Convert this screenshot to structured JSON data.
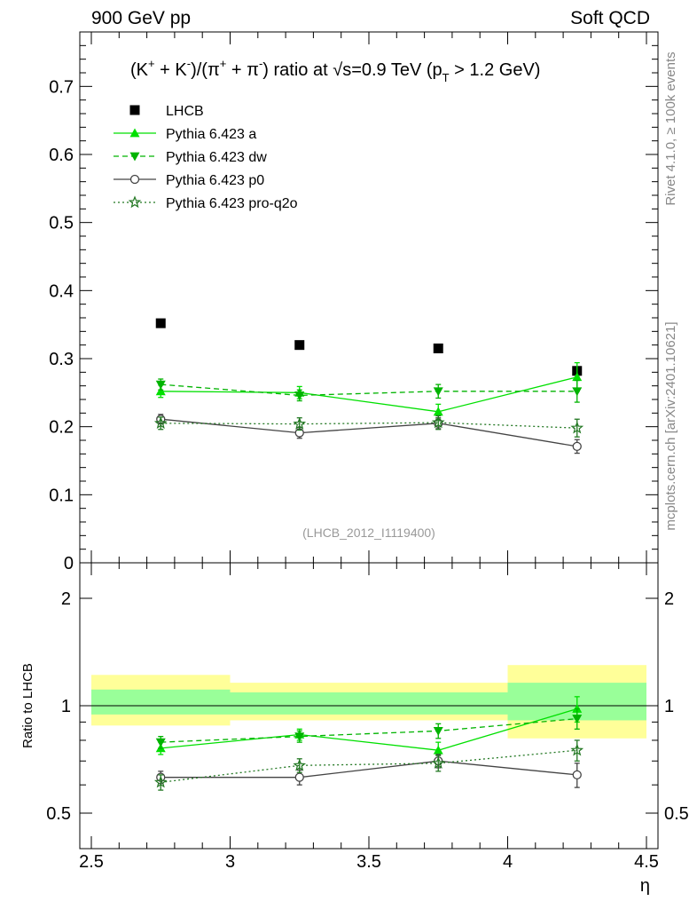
{
  "header": {
    "left": "900 GeV pp",
    "right": "Soft QCD"
  },
  "side_labels": {
    "rivet": "Rivet 4.1.0, ≥ 100k events",
    "mcplots": "mcplots.cern.ch [arXiv:2401.10621]"
  },
  "analysis_id": "(LHCB_2012_I1119400)",
  "chart_data": [
    {
      "type": "scatter",
      "title": "(K⁺ + K⁻)/(π⁺ + π⁻) ratio at √s=0.9 TeV (p_T > 1.2 GeV)",
      "xlabel": "η",
      "ylabel": "",
      "xlim": [
        2.5,
        4.5
      ],
      "ylim": [
        0,
        0.78
      ],
      "x_ticks": [
        2.5,
        3,
        3.5,
        4,
        4.5
      ],
      "x_tick_labels": [
        "2.5",
        "3",
        "3.5",
        "4",
        "4.5"
      ],
      "y_ticks": [
        0,
        0.1,
        0.2,
        0.3,
        0.4,
        0.5,
        0.6,
        0.7
      ],
      "y_tick_labels": [
        "0",
        "0.1",
        "0.2",
        "0.3",
        "0.4",
        "0.5",
        "0.6",
        "0.7"
      ],
      "legend_position": "top-left",
      "x": [
        2.75,
        3.25,
        3.75,
        4.25
      ],
      "series": [
        {
          "name": "LHCB",
          "marker": "square-filled",
          "line": "none",
          "color": "#000000",
          "values": [
            0.352,
            0.32,
            0.315,
            0.282
          ],
          "errors": [
            0.004,
            0.004,
            0.004,
            0.004
          ]
        },
        {
          "name": "Pythia 6.423 a",
          "marker": "triangle-up",
          "line": "solid",
          "color": "#00e000",
          "values": [
            0.252,
            0.25,
            0.222,
            0.273
          ],
          "errors": [
            0.009,
            0.009,
            0.011,
            0.021
          ]
        },
        {
          "name": "Pythia 6.423 dw",
          "marker": "triangle-down",
          "line": "dashed",
          "color": "#00b300",
          "values": [
            0.262,
            0.246,
            0.252,
            0.252
          ],
          "errors": [
            0.008,
            0.008,
            0.01,
            0.016
          ]
        },
        {
          "name": "Pythia 6.423 p0",
          "marker": "circle-open",
          "line": "solid",
          "color": "#444444",
          "values": [
            0.211,
            0.191,
            0.205,
            0.171
          ],
          "errors": [
            0.007,
            0.008,
            0.008,
            0.01
          ]
        },
        {
          "name": "Pythia 6.423 pro-q2o",
          "marker": "star-open",
          "line": "dotted",
          "color": "#227722",
          "values": [
            0.205,
            0.204,
            0.206,
            0.198
          ],
          "errors": [
            0.009,
            0.009,
            0.01,
            0.013
          ]
        }
      ]
    },
    {
      "type": "scatter",
      "title": "",
      "xlabel": "η",
      "ylabel": "Ratio to LHCB",
      "xlim": [
        2.5,
        4.5
      ],
      "ylim": [
        0.42,
        2.3
      ],
      "x_ticks": [
        2.5,
        3,
        3.5,
        4,
        4.5
      ],
      "x_tick_labels": [
        "2.5",
        "3",
        "3.5",
        "4",
        "4.5"
      ],
      "y_ticks": [
        0.5,
        1,
        2
      ],
      "y_tick_labels": [
        "0.5",
        "1",
        "2"
      ],
      "bands": [
        {
          "x_from": 2.5,
          "x_to": 3.0,
          "stat": [
            0.945,
            1.11
          ],
          "total": [
            0.88,
            1.22
          ]
        },
        {
          "x_from": 3.0,
          "x_to": 3.5,
          "stat": [
            0.945,
            1.09
          ],
          "total": [
            0.91,
            1.16
          ]
        },
        {
          "x_from": 3.5,
          "x_to": 4.0,
          "stat": [
            0.945,
            1.09
          ],
          "total": [
            0.91,
            1.16
          ]
        },
        {
          "x_from": 4.0,
          "x_to": 4.5,
          "stat": [
            0.91,
            1.16
          ],
          "total": [
            0.81,
            1.3
          ]
        }
      ],
      "x": [
        2.75,
        3.25,
        3.75,
        4.25
      ],
      "series": [
        {
          "name": "Pythia 6.423 a",
          "values": [
            0.76,
            0.83,
            0.75,
            0.98
          ],
          "errors": [
            0.03,
            0.03,
            0.04,
            0.08
          ]
        },
        {
          "name": "Pythia 6.423 dw",
          "values": [
            0.79,
            0.82,
            0.85,
            0.92
          ],
          "errors": [
            0.03,
            0.03,
            0.04,
            0.06
          ]
        },
        {
          "name": "Pythia 6.423 p0",
          "values": [
            0.63,
            0.63,
            0.7,
            0.64
          ],
          "errors": [
            0.025,
            0.03,
            0.03,
            0.05
          ]
        },
        {
          "name": "Pythia 6.423 pro-q2o",
          "values": [
            0.61,
            0.68,
            0.69,
            0.75
          ],
          "errors": [
            0.03,
            0.03,
            0.035,
            0.05
          ]
        }
      ]
    }
  ]
}
